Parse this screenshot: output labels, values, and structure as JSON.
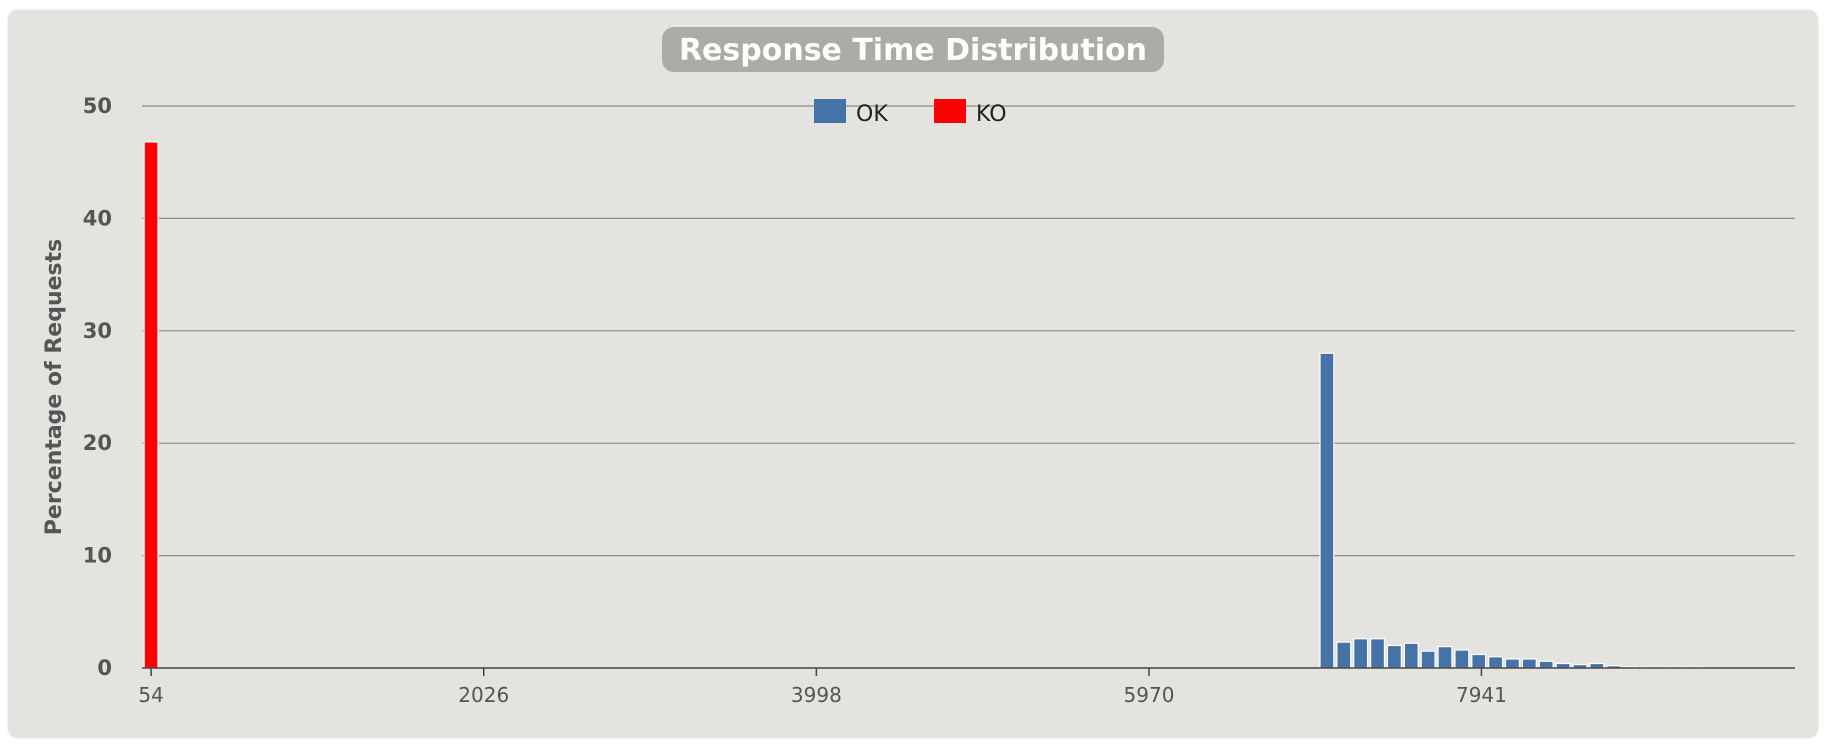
{
  "colors": {
    "ok": "#4572a7",
    "ko": "#ff0000",
    "panel": "#e5e3df",
    "title_box": "#adaba6"
  },
  "chart_data": {
    "type": "bar",
    "title": "Response Time Distribution",
    "xlabel": "",
    "ylabel": "Percentage of Requests",
    "xlim": [
      0,
      9800
    ],
    "ylim": [
      0,
      50
    ],
    "y_ticks": [
      0,
      10,
      20,
      30,
      40,
      50
    ],
    "x_ticks": [
      54,
      2026,
      3998,
      5970,
      7941
    ],
    "grid": true,
    "legend_position": "top-center",
    "bar_width": 82,
    "series": [
      {
        "name": "OK",
        "color": "#4572a7",
        "points": [
          {
            "x": 7025,
            "y": 28.0
          },
          {
            "x": 7125,
            "y": 2.3
          },
          {
            "x": 7225,
            "y": 2.6
          },
          {
            "x": 7325,
            "y": 2.6
          },
          {
            "x": 7425,
            "y": 2.0
          },
          {
            "x": 7525,
            "y": 2.2
          },
          {
            "x": 7625,
            "y": 1.5
          },
          {
            "x": 7725,
            "y": 1.9
          },
          {
            "x": 7825,
            "y": 1.6
          },
          {
            "x": 7925,
            "y": 1.2
          },
          {
            "x": 8025,
            "y": 1.0
          },
          {
            "x": 8125,
            "y": 0.8
          },
          {
            "x": 8225,
            "y": 0.8
          },
          {
            "x": 8325,
            "y": 0.6
          },
          {
            "x": 8425,
            "y": 0.4
          },
          {
            "x": 8525,
            "y": 0.3
          },
          {
            "x": 8625,
            "y": 0.4
          },
          {
            "x": 8725,
            "y": 0.2
          },
          {
            "x": 8825,
            "y": 0.1
          },
          {
            "x": 8925,
            "y": 0.05
          },
          {
            "x": 9025,
            "y": 0.05
          },
          {
            "x": 9125,
            "y": 0.03
          },
          {
            "x": 9225,
            "y": 0.05
          }
        ]
      },
      {
        "name": "KO",
        "color": "#ff0000",
        "points": [
          {
            "x": 54,
            "y": 46.8
          }
        ]
      }
    ]
  }
}
